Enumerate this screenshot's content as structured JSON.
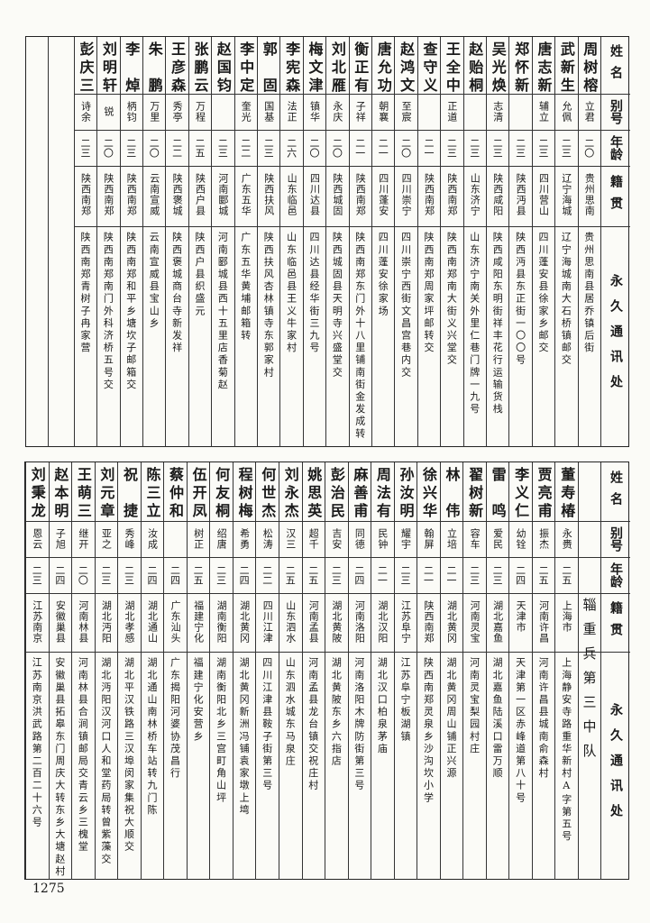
{
  "headers": [
    "姓名",
    "别号",
    "年龄",
    "籍贯",
    "永久通讯处"
  ],
  "top_table": {
    "people": [
      {
        "name": "周树榕",
        "alias": "立君",
        "age": "二〇",
        "origin": "贵州思南",
        "address": "贵州思南县居乔镇后街"
      },
      {
        "name": "武新生",
        "alias": "允佩",
        "age": "二三",
        "origin": "辽宁海城",
        "address": "辽宁海城南大石桥镇邮交"
      },
      {
        "name": "唐志新",
        "alias": "辅立",
        "age": "二三",
        "origin": "四川营山",
        "address": "四川蓬安县徐家乡邮交"
      },
      {
        "name": "郑怀新",
        "alias": "",
        "age": "二三",
        "origin": "陕西沔县",
        "address": "陕西沔县东正街一〇〇号"
      },
      {
        "name": "吴光焕",
        "alias": "志清",
        "age": "二三",
        "origin": "陕西咸阳",
        "address": "陕西咸阳东明街祥丰花行运输货栈"
      },
      {
        "name": "赵贻桐",
        "alias": "",
        "age": "二三",
        "origin": "山东济宁",
        "address": "山东济宁南关外里仁巷门牌一九号"
      },
      {
        "name": "王全中",
        "alias": "正道",
        "age": "二三",
        "origin": "陕西南郑",
        "address": "陕西南郑南大街义兴堂交"
      },
      {
        "name": "查守义",
        "alias": "",
        "age": "二一",
        "origin": "陕西南郑",
        "address": "陕西南郑周家坪邮转交"
      },
      {
        "name": "赵鸿文",
        "alias": "至宸",
        "age": "二〇",
        "origin": "四川崇宁",
        "address": "四川崇宁西街文昌宫巷内交"
      },
      {
        "name": "唐允功",
        "alias": "朝襄",
        "age": "二一",
        "origin": "四川蓬安",
        "address": "四川蓬安徐家场"
      },
      {
        "name": "衡正有",
        "alias": "子祥",
        "age": "二一",
        "origin": "陕西南郑",
        "address": "陕西南郑东门外十八里铺南街金发成转"
      },
      {
        "name": "刘北雁",
        "alias": "永庆",
        "age": "二〇",
        "origin": "陕西城固",
        "address": "陕西城固县天明寺兴盛堂交"
      },
      {
        "name": "梅文津",
        "alias": "镇华",
        "age": "二〇",
        "origin": "四川达县",
        "address": "四川达县经华街三九号"
      },
      {
        "name": "李宪森",
        "alias": "法正",
        "age": "二六",
        "origin": "山东临邑",
        "address": "山东临邑县王义牛家村"
      },
      {
        "name": "郭固",
        "alias": "国基",
        "age": "二三",
        "origin": "陕西扶风",
        "address": "陕西扶风杏林镇寺东郭家村"
      },
      {
        "name": "李中定",
        "alias": "奎光",
        "age": "二二",
        "origin": "广东五华",
        "address": "广东五华黄埔邮箱转"
      },
      {
        "name": "赵国钧",
        "alias": "",
        "age": "二三",
        "origin": "河南郾城",
        "address": "河南郾城县西十五里店香菊赵"
      },
      {
        "name": "张鹏云",
        "alias": "万程",
        "age": "二五",
        "origin": "陕西户县",
        "address": "陕西户县织盛元"
      },
      {
        "name": "王彦森",
        "alias": "秀亭",
        "age": "二二",
        "origin": "陕西褒城",
        "address": "陕西褒城商台寺新发祥"
      },
      {
        "name": "朱鹏",
        "alias": "万里",
        "age": "二〇",
        "origin": "云南宣威",
        "address": "云南宣威县宝山乡"
      },
      {
        "name": "李焯",
        "alias": "柄钧",
        "age": "二三",
        "origin": "陕西南郑",
        "address": "陕西南郑和平乡塘坎子邮箱交"
      },
      {
        "name": "刘明轩",
        "alias": "锐",
        "age": "二〇",
        "origin": "陕西南郑",
        "address": "陕西南郑南门外科济桥五号交"
      },
      {
        "name": "彭庆三",
        "alias": "诗余",
        "age": "二三",
        "origin": "陕西南郑",
        "address": "陕西南郑青树子冉家营"
      }
    ]
  },
  "bottom_table": {
    "unit": "辎重兵第三中队",
    "people": [
      {
        "name": "董寿椿",
        "alias": "永赉",
        "age": "二五",
        "origin": "上海市",
        "address": "上海静安寺路重华新村A字第五号"
      },
      {
        "name": "贾亮甫",
        "alias": "振杰",
        "age": "二五",
        "origin": "河南许昌",
        "address": "河南许昌县城南俞森村"
      },
      {
        "name": "李义仁",
        "alias": "幼铨",
        "age": "二四",
        "origin": "天津市",
        "address": "天津第一区赤峰道第八十号"
      },
      {
        "name": "雷鸣",
        "alias": "爱民",
        "age": "二三",
        "origin": "湖北嘉鱼",
        "address": "湖北嘉鱼陆溪口雷万顺"
      },
      {
        "name": "翟树新",
        "alias": "容车",
        "age": "二三",
        "origin": "河南灵宝",
        "address": "河南灵宝梨园村庄"
      },
      {
        "name": "林伟",
        "alias": "立培",
        "age": "二一",
        "origin": "湖北黄冈",
        "address": "湖北黄冈周山铺正兴源"
      },
      {
        "name": "徐兴华",
        "alias": "翰屏",
        "age": "二一",
        "origin": "陕西南郑",
        "address": "陕西南郑灵泉乡沙沟坎小学"
      },
      {
        "name": "孙汝明",
        "alias": "耀宇",
        "age": "二三",
        "origin": "江苏阜宁",
        "address": "江苏阜宁板湖镇"
      },
      {
        "name": "周法有",
        "alias": "民钟",
        "age": "二一",
        "origin": "湖北汉阳",
        "address": "湖北汉口柏泉茅庙"
      },
      {
        "name": "麻善甫",
        "alias": "同德",
        "age": "二四",
        "origin": "河南洛阳",
        "address": "河南洛阳木牌防街第三号"
      },
      {
        "name": "彭治民",
        "alias": "吉安",
        "age": "二三",
        "origin": "湖北黄陂",
        "address": "湖北黄陂东乡六指店"
      },
      {
        "name": "姚思英",
        "alias": "超千",
        "age": "二五",
        "origin": "河南孟县",
        "address": "河南孟县龙台镇交祝庄村"
      },
      {
        "name": "刘永杰",
        "alias": "汉三",
        "age": "二五",
        "origin": "山东泗水",
        "address": "山东泗水城东马泉庄"
      },
      {
        "name": "何世杰",
        "alias": "松涛",
        "age": "二二",
        "origin": "四川江津",
        "address": "四川江津县鞍子街第三号"
      },
      {
        "name": "程树梅",
        "alias": "希勇",
        "age": "二四",
        "origin": "湖北黄冈",
        "address": "湖北黄冈新洲冯铺袁家墩上塆"
      },
      {
        "name": "何友桐",
        "alias": "绍唐",
        "age": "二三",
        "origin": "湖南衡阳",
        "address": "湖南衡阳北乡三宫町角山坪"
      },
      {
        "name": "伍开凤",
        "alias": "树正",
        "age": "二五",
        "origin": "福建宁化",
        "address": "福建宁化安营乡"
      },
      {
        "name": "蔡仲和",
        "alias": "",
        "age": "二四",
        "origin": "广东汕头",
        "address": "广东揭阳河婆协茂昌行"
      },
      {
        "name": "陈三立",
        "alias": "汝成",
        "age": "二四",
        "origin": "湖北通山",
        "address": "湖北通山南林桥车站转九门陈"
      },
      {
        "name": "祝捷",
        "alias": "秀峰",
        "age": "二三",
        "origin": "湖北孝感",
        "address": "湖北平汉铁路三汉埠闵家集祝大顺交"
      },
      {
        "name": "刘元章",
        "alias": "亚之",
        "age": "二三",
        "origin": "湖北沔阳",
        "address": "湖北沔阳汉河口人和堂药局转曾紫藻交"
      },
      {
        "name": "王萌三",
        "alias": "继开",
        "age": "二〇",
        "origin": "河南林县",
        "address": "河南林县合涧镇邮局交青云乡三槐堂"
      },
      {
        "name": "赵本明",
        "alias": "子旭",
        "age": "二四",
        "origin": "安徽巢县",
        "address": "安徽巢县拓皋东门周庆大转东乡大塘赵村"
      },
      {
        "name": "刘秉龙",
        "alias": "恩云",
        "age": "二三",
        "origin": "江苏南京",
        "address": "江苏南京洪武路第二百二十六号"
      }
    ]
  },
  "page_number": "1275"
}
